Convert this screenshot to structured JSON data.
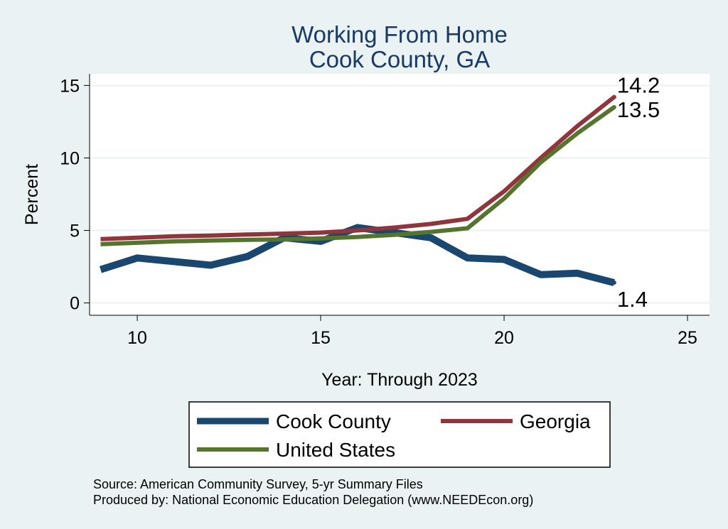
{
  "chart_data": {
    "type": "line",
    "title": [
      "Working From Home",
      "Cook County, GA"
    ],
    "xlabel": "Year: Through 2023",
    "ylabel": "Percent",
    "xlim": [
      8.7,
      25.6
    ],
    "ylim": [
      -0.85,
      15.8
    ],
    "xticks": [
      10,
      15,
      20,
      25
    ],
    "yticks": [
      0,
      5,
      10,
      15
    ],
    "grid": true,
    "series": [
      {
        "name": "Cook County",
        "color": "#1a476f",
        "x": [
          9,
          10,
          11,
          12,
          13,
          14,
          15,
          16,
          17,
          18,
          19,
          20,
          21,
          22,
          23
        ],
        "values": [
          2.3,
          3.1,
          2.85,
          2.6,
          3.2,
          4.5,
          4.25,
          5.2,
          4.85,
          4.5,
          3.1,
          3.0,
          1.95,
          2.05,
          1.4
        ],
        "end_label": "1.4"
      },
      {
        "name": "Georgia",
        "color": "#90353b",
        "x": [
          9,
          10,
          11,
          12,
          13,
          14,
          15,
          16,
          17,
          18,
          19,
          20,
          21,
          22,
          23
        ],
        "values": [
          4.4,
          4.5,
          4.6,
          4.65,
          4.72,
          4.78,
          4.85,
          5.0,
          5.2,
          5.45,
          5.8,
          7.7,
          10.0,
          12.2,
          14.2
        ],
        "end_label": "14.2"
      },
      {
        "name": "United States",
        "color": "#55752f",
        "x": [
          9,
          10,
          11,
          12,
          13,
          14,
          15,
          16,
          17,
          18,
          19,
          20,
          21,
          22,
          23
        ],
        "values": [
          4.05,
          4.15,
          4.25,
          4.3,
          4.35,
          4.38,
          4.45,
          4.55,
          4.7,
          4.9,
          5.15,
          7.2,
          9.7,
          11.7,
          13.5
        ],
        "end_label": "13.5"
      }
    ],
    "legend": {
      "placement": "bottom",
      "entries": [
        "Cook County",
        "Georgia",
        "United States"
      ]
    },
    "notes": [
      "Source: American Community Survey, 5-yr Summary Files",
      "Produced by: National Economic Education Delegation (www.NEEDEcon.org)"
    ]
  }
}
